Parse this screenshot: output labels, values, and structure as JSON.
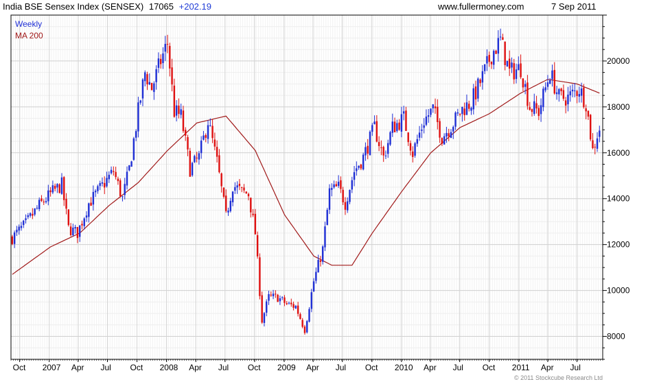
{
  "header": {
    "title": "India BSE Sensex Index (SENSEX)",
    "last": "17065",
    "change": "+202.19",
    "site": "www.fullermoney.com",
    "date": "7 Sep 2011"
  },
  "copyright": "© 2011 Stockcube Research Ltd",
  "colors": {
    "up": "#1f2fd6",
    "down": "#e01010",
    "ma": "#a01818",
    "grid": "#e8e8e8",
    "frame": "#000000"
  },
  "chart_data": {
    "type": "line",
    "legend": {
      "placement": "top-left"
    },
    "series": [
      {
        "name": "Weekly",
        "style": "price-bars"
      },
      {
        "name": "MA 200",
        "style": "line"
      }
    ],
    "ylim": [
      7000,
      22000
    ],
    "y_ticks": [
      8000,
      10000,
      12000,
      14000,
      16000,
      18000,
      20000
    ],
    "x_range": [
      "2006-09-04",
      "2011-09-19"
    ],
    "x_ticks": [
      {
        "label": "Oct",
        "date": "2006-10-01"
      },
      {
        "label": "2007",
        "date": "2007-01-01"
      },
      {
        "label": "Apr",
        "date": "2007-04-01"
      },
      {
        "label": "Jul",
        "date": "2007-07-01"
      },
      {
        "label": "Oct",
        "date": "2007-10-01"
      },
      {
        "label": "2008",
        "date": "2008-01-01"
      },
      {
        "label": "Apr",
        "date": "2008-04-01"
      },
      {
        "label": "Jul",
        "date": "2008-07-01"
      },
      {
        "label": "Oct",
        "date": "2008-10-01"
      },
      {
        "label": "2009",
        "date": "2009-01-01"
      },
      {
        "label": "Apr",
        "date": "2009-04-01"
      },
      {
        "label": "Jul",
        "date": "2009-07-01"
      },
      {
        "label": "Oct",
        "date": "2009-10-01"
      },
      {
        "label": "2010",
        "date": "2010-01-01"
      },
      {
        "label": "Apr",
        "date": "2010-04-01"
      },
      {
        "label": "Jul",
        "date": "2010-07-01"
      },
      {
        "label": "Oct",
        "date": "2010-10-01"
      },
      {
        "label": "2011",
        "date": "2011-01-01"
      },
      {
        "label": "Apr",
        "date": "2011-04-01"
      },
      {
        "label": "Jul",
        "date": "2011-07-01"
      }
    ],
    "price_path": [
      [
        "2006-09-08",
        12300
      ],
      [
        "2006-10-20",
        12900
      ],
      [
        "2006-12-01",
        13700
      ],
      [
        "2007-01-12",
        14300
      ],
      [
        "2007-02-09",
        14600
      ],
      [
        "2007-03-02",
        12700
      ],
      [
        "2007-03-30",
        12500
      ],
      [
        "2007-05-04",
        13800
      ],
      [
        "2007-06-01",
        14300
      ],
      [
        "2007-07-20",
        15200
      ],
      [
        "2007-08-17",
        14000
      ],
      [
        "2007-09-07",
        15300
      ],
      [
        "2007-10-05",
        17800
      ],
      [
        "2007-10-26",
        19500
      ],
      [
        "2007-11-16",
        18800
      ],
      [
        "2007-12-14",
        20000
      ],
      [
        "2008-01-04",
        20800
      ],
      [
        "2008-01-25",
        17800
      ],
      [
        "2008-02-15",
        17600
      ],
      [
        "2008-03-14",
        15300
      ],
      [
        "2008-04-11",
        15800
      ],
      [
        "2008-05-09",
        17400
      ],
      [
        "2008-06-06",
        15600
      ],
      [
        "2008-07-04",
        13200
      ],
      [
        "2008-07-25",
        14600
      ],
      [
        "2008-08-22",
        14300
      ],
      [
        "2008-09-12",
        14200
      ],
      [
        "2008-10-03",
        12500
      ],
      [
        "2008-10-24",
        8700
      ],
      [
        "2008-11-14",
        9700
      ],
      [
        "2008-12-12",
        9700
      ],
      [
        "2009-01-09",
        9400
      ],
      [
        "2009-02-06",
        9300
      ],
      [
        "2009-03-06",
        8300
      ],
      [
        "2009-04-03",
        10400
      ],
      [
        "2009-05-01",
        11800
      ],
      [
        "2009-05-22",
        14300
      ],
      [
        "2009-06-19",
        14500
      ],
      [
        "2009-07-10",
        13800
      ],
      [
        "2009-08-07",
        15200
      ],
      [
        "2009-09-04",
        15800
      ],
      [
        "2009-10-09",
        17100
      ],
      [
        "2009-11-06",
        15800
      ],
      [
        "2009-12-04",
        17100
      ],
      [
        "2010-01-08",
        17500
      ],
      [
        "2010-02-05",
        16000
      ],
      [
        "2010-03-12",
        17400
      ],
      [
        "2010-04-09",
        17900
      ],
      [
        "2010-05-07",
        16700
      ],
      [
        "2010-06-11",
        17300
      ],
      [
        "2010-07-09",
        17900
      ],
      [
        "2010-08-06",
        18200
      ],
      [
        "2010-09-10",
        19300
      ],
      [
        "2010-10-08",
        20300
      ],
      [
        "2010-11-05",
        20900
      ],
      [
        "2010-12-03",
        19500
      ],
      [
        "2011-01-07",
        19700
      ],
      [
        "2011-02-04",
        18000
      ],
      [
        "2011-03-04",
        17800
      ],
      [
        "2011-04-08",
        19500
      ],
      [
        "2011-05-06",
        18400
      ],
      [
        "2011-06-03",
        18400
      ],
      [
        "2011-07-08",
        18800
      ],
      [
        "2011-07-29",
        18200
      ],
      [
        "2011-08-19",
        16100
      ],
      [
        "2011-09-02",
        16800
      ],
      [
        "2011-09-09",
        17065
      ]
    ],
    "ma_path": [
      [
        "2006-09-08",
        10700
      ],
      [
        "2007-01-05",
        11900
      ],
      [
        "2007-04-06",
        12500
      ],
      [
        "2007-07-06",
        13700
      ],
      [
        "2007-10-05",
        14700
      ],
      [
        "2008-01-04",
        16100
      ],
      [
        "2008-04-04",
        17300
      ],
      [
        "2008-07-04",
        17600
      ],
      [
        "2008-10-03",
        16100
      ],
      [
        "2009-01-02",
        13300
      ],
      [
        "2009-04-03",
        11500
      ],
      [
        "2009-05-29",
        11100
      ],
      [
        "2009-07-31",
        11100
      ],
      [
        "2009-10-02",
        12500
      ],
      [
        "2010-01-01",
        14300
      ],
      [
        "2010-04-02",
        16000
      ],
      [
        "2010-07-02",
        17100
      ],
      [
        "2010-10-01",
        17700
      ],
      [
        "2011-01-07",
        18600
      ],
      [
        "2011-04-01",
        19200
      ],
      [
        "2011-07-01",
        19000
      ],
      [
        "2011-09-09",
        18600
      ]
    ]
  }
}
